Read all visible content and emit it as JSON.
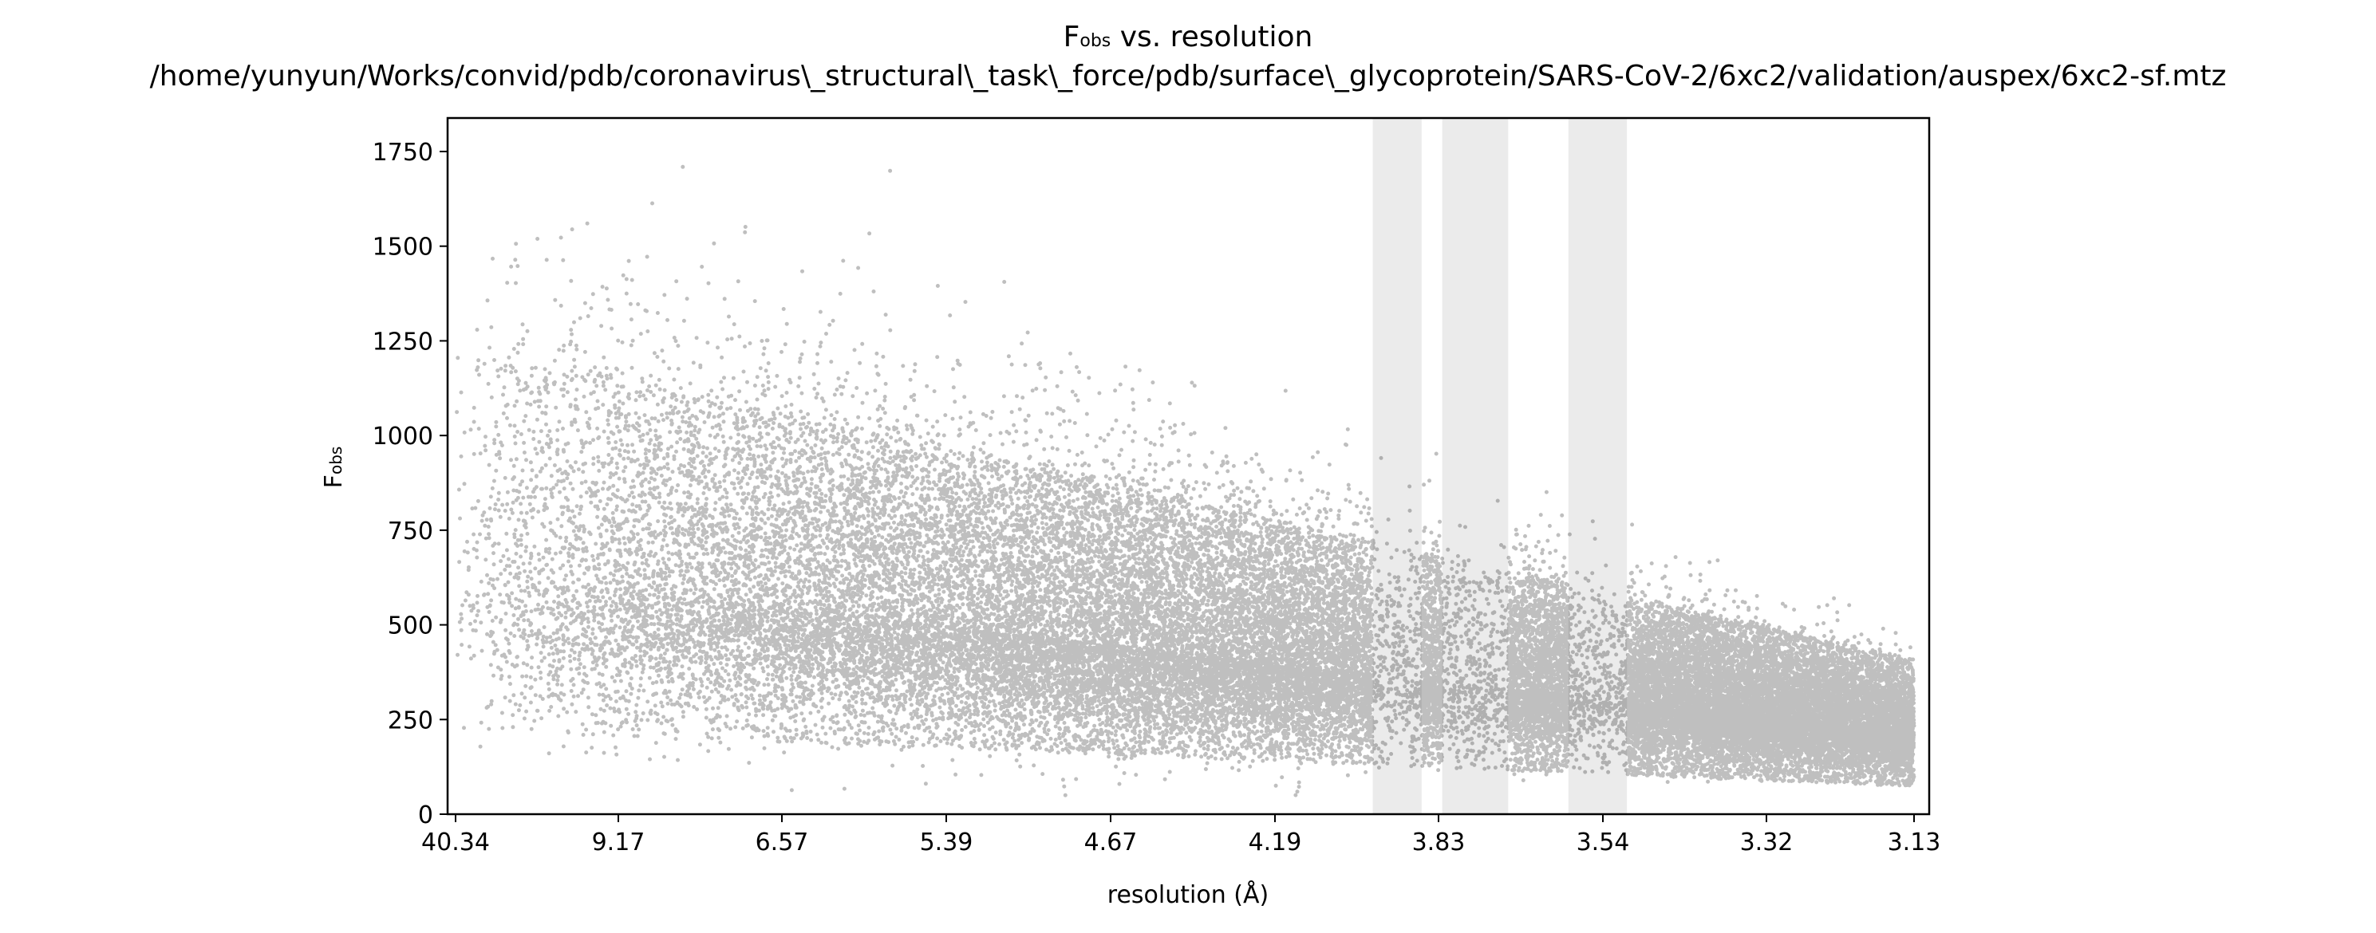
{
  "chart_data": {
    "type": "scatter",
    "title": {
      "main": "F",
      "main_sub": "obs",
      "main_rest": " vs. resolution",
      "path": "/home/yunyun/Works/convid/pdb/coronavirus\\_structural\\_task\\_force/pdb/surface\\_glycoprotein/SARS-CoV-2/6xc2/validation/auspex/6xc2-sf.mtz"
    },
    "xlabel": "resolution (Å)",
    "ylabel": {
      "main": "F",
      "sub": "obs"
    },
    "x_scale": "reciprocal-square (1/d²)",
    "x_tick_labels": [
      "40.34",
      "9.17",
      "6.57",
      "5.39",
      "4.67",
      "4.19",
      "3.83",
      "3.54",
      "3.32",
      "3.13"
    ],
    "xlim_resolution": [
      40.34,
      3.13
    ],
    "y_tick_labels": [
      "0",
      "250",
      "500",
      "750",
      "1000",
      "1250",
      "1500",
      "1750"
    ],
    "y_ticks": [
      0,
      250,
      500,
      750,
      1000,
      1250,
      1500,
      1750
    ],
    "ylim": [
      0,
      1830
    ],
    "shaded_resolution_ranges": [
      [
        3.94,
        3.84
      ],
      [
        3.8,
        3.68
      ],
      [
        3.58,
        3.49
      ]
    ],
    "point_color": "#000000",
    "point_alpha": 0.25,
    "shade_color": "#ebebeb",
    "grid": false,
    "legend": "none",
    "approx_point_count": 45000
  }
}
